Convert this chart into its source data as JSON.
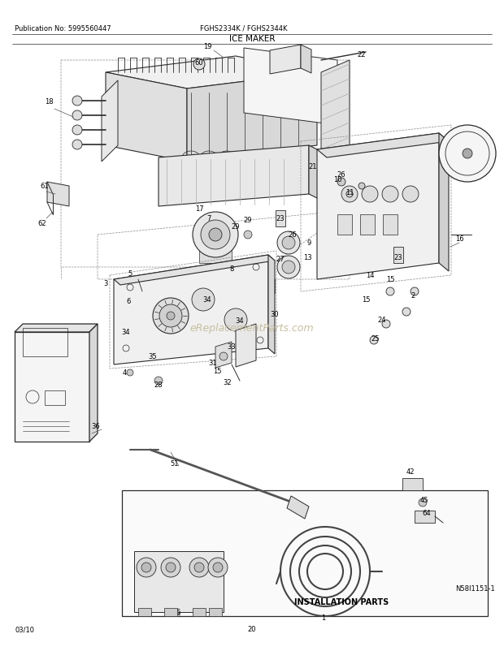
{
  "title": "ICE MAKER",
  "pub_no": "Publication No: 5995560447",
  "model": "FGHS2334K / FGHS2344K",
  "date": "03/10",
  "page": "20",
  "diagram_id": "N58I1151-1",
  "install_parts_label": "INSTALLATION PARTS",
  "bg_color": "#ffffff",
  "text_color": "#000000",
  "line_color": "#2a2a2a",
  "gray_light": "#e8e8e8",
  "gray_mid": "#cccccc",
  "gray_dark": "#999999",
  "watermark_text": "eReplacementParts.com",
  "watermark_color": "#c8bfa0",
  "figsize": [
    6.2,
    8.03
  ],
  "dpi": 100
}
